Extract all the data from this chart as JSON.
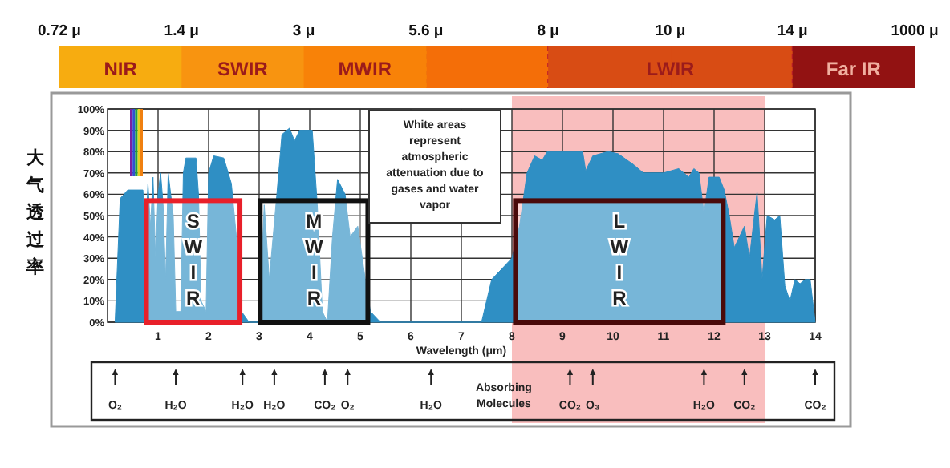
{
  "chart_data": [
    {
      "type": "other",
      "categories": [
        "NIR",
        "SWIR",
        "MWIR",
        null,
        "LWIR",
        null,
        "Far IR"
      ],
      "colors": [
        "#f7ac10",
        "#f89410",
        "#f88208",
        "#f46e08",
        "#d84c14",
        "#d84c14",
        "#921212"
      ],
      "annotations": [
        "0.72 μ",
        "1.4 μ",
        "3 μ",
        "5.6 μ",
        "8 μ",
        "10 μ",
        "14 μ",
        "1000 μ"
      ]
    },
    {
      "type": "area",
      "ylabel": "大气透过率",
      "xlabel": "Wavelength (μm)",
      "xlim": [
        0,
        14
      ],
      "xticks": [
        1,
        2,
        3,
        4,
        5,
        6,
        7,
        8,
        9,
        10,
        11,
        12,
        13,
        14
      ],
      "ylim": [
        0,
        100
      ],
      "yticks": [
        {
          "value": 0,
          "label": "0%"
        },
        {
          "value": 10,
          "label": "10%"
        },
        {
          "value": 20,
          "label": "20%"
        },
        {
          "value": 30,
          "label": "30%"
        },
        {
          "value": 40,
          "label": "40%"
        },
        {
          "value": 50,
          "label": "50%"
        },
        {
          "value": 60,
          "label": "60%"
        },
        {
          "value": 70,
          "label": "70%"
        },
        {
          "value": 80,
          "label": "80%"
        },
        {
          "value": 90,
          "label": "90%"
        },
        {
          "value": 100,
          "label": "100%"
        }
      ],
      "grid": true,
      "series": [
        {
          "color": "#2f8fc4",
          "x": [
            0.15,
            0.25,
            0.4,
            0.7,
            0.75,
            0.8,
            0.85,
            0.9,
            0.95,
            1.0,
            1.05,
            1.1,
            1.15,
            1.2,
            1.3,
            1.35,
            1.45,
            1.5,
            1.55,
            1.75,
            1.8,
            1.85,
            1.95,
            2.0,
            2.1,
            2.3,
            2.45,
            2.55,
            2.65,
            2.8,
            3.0,
            3.1,
            3.2,
            3.35,
            3.45,
            3.6,
            3.7,
            3.8,
            4.05,
            4.15,
            4.25,
            4.35,
            4.45,
            4.55,
            4.7,
            4.8,
            4.95,
            5.1,
            5.2,
            5.4,
            7.4,
            7.6,
            7.8,
            8.0,
            8.15,
            8.3,
            8.45,
            8.6,
            8.7,
            9.0,
            9.4,
            9.46,
            9.6,
            9.9,
            10.1,
            10.4,
            10.6,
            11.0,
            11.3,
            11.5,
            11.6,
            11.7,
            11.8,
            11.9,
            12.1,
            12.2,
            12.3,
            12.4,
            12.5,
            12.6,
            12.7,
            12.85,
            12.95,
            13.05,
            13.2,
            13.3,
            13.4,
            13.5,
            13.6,
            13.7,
            13.8,
            13.9,
            14.0
          ],
          "values": [
            0,
            58,
            62,
            62,
            40,
            65,
            45,
            68,
            30,
            60,
            70,
            55,
            20,
            70,
            50,
            5,
            5,
            70,
            77,
            77,
            60,
            10,
            5,
            70,
            78,
            77,
            65,
            40,
            5,
            0,
            0,
            55,
            20,
            60,
            88,
            91,
            85,
            90,
            90,
            55,
            5,
            0,
            40,
            67,
            60,
            40,
            45,
            20,
            5,
            0,
            0,
            20,
            25,
            30,
            45,
            70,
            78,
            76,
            80,
            80,
            80,
            71,
            78,
            80,
            79,
            74,
            70,
            70,
            72,
            68,
            72,
            70,
            51,
            68,
            68,
            62,
            50,
            35,
            40,
            45,
            30,
            61,
            20,
            50,
            48,
            50,
            17,
            10,
            20,
            18,
            20,
            20,
            0
          ]
        }
      ],
      "bands": [
        {
          "axis": "x",
          "from": 8,
          "to": 13,
          "color": "#f7a8a8"
        },
        {
          "axis": "x",
          "from": 0.77,
          "to": 2.62,
          "label": "SWIR",
          "color": "#e8202a"
        },
        {
          "axis": "x",
          "from": 3.02,
          "to": 5.15,
          "label": "MWIR",
          "color": "#111111"
        },
        {
          "axis": "x",
          "from": 8.07,
          "to": 12.18,
          "label": "LWIR",
          "color": "#4a0a0a"
        }
      ],
      "ref_lines": [
        {
          "axis": "x",
          "value": 0.15,
          "label": "O₂"
        },
        {
          "axis": "x",
          "value": 1.35,
          "label": "H₂O"
        },
        {
          "axis": "x",
          "value": 2.67,
          "label": "H₂O"
        },
        {
          "axis": "x",
          "value": 3.3,
          "label": "H₂O"
        },
        {
          "axis": "x",
          "value": 4.3,
          "label": "CO₂"
        },
        {
          "axis": "x",
          "value": 4.75,
          "label": "O₂"
        },
        {
          "axis": "x",
          "value": 6.4,
          "label": "H₂O"
        },
        {
          "axis": "x",
          "value": 9.15,
          "label": "CO₂"
        },
        {
          "axis": "x",
          "value": 9.6,
          "label": "O₃"
        },
        {
          "axis": "x",
          "value": 11.8,
          "label": "H₂O"
        },
        {
          "axis": "x",
          "value": 12.6,
          "label": "CO₂"
        },
        {
          "axis": "x",
          "value": 14,
          "label": "CO₂"
        }
      ],
      "annotations": [
        "White areas represent atmospheric attenuation due to gases and water vapor",
        "Absorbing Molecules"
      ]
    }
  ]
}
